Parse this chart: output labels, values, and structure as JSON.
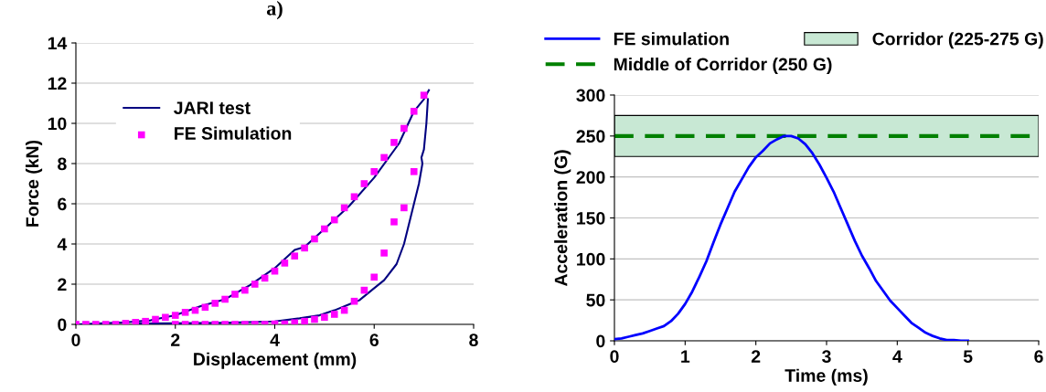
{
  "chart_data": [
    {
      "type": "line",
      "title": "a)",
      "xlabel": "Displacement (mm)",
      "ylabel": "Force (kN)",
      "xlim": [
        0,
        8
      ],
      "xticks": [
        0,
        2,
        4,
        6,
        8
      ],
      "ylim": [
        0,
        14
      ],
      "yticks": [
        0,
        2,
        4,
        6,
        8,
        10,
        12,
        14
      ],
      "grid": "y",
      "legend": "top left",
      "series": [
        {
          "name": "JARI test",
          "color": "#000080",
          "marker": "none",
          "line_style": "solid",
          "x": [
            0,
            1,
            1.5,
            2,
            2.5,
            3,
            3.5,
            4,
            4.4,
            4.6,
            5,
            5.5,
            6,
            6.5,
            6.8,
            7.0,
            7.1
          ],
          "values": [
            0,
            0.1,
            0.2,
            0.45,
            0.9,
            1.25,
            1.95,
            2.8,
            3.7,
            3.85,
            4.75,
            5.9,
            7.3,
            9.0,
            10.6,
            11.2,
            11.65
          ]
        },
        {
          "color": "#000080",
          "marker": "none",
          "line_style": "solid",
          "x": [
            7.08,
            7.05,
            7.0,
            6.95,
            6.97,
            6.9,
            6.8,
            6.6,
            6.45,
            6.2,
            6.0,
            5.7,
            5.5,
            5.2,
            4.9,
            4.5,
            4.0,
            3,
            2,
            1.2
          ],
          "values": [
            11.2,
            10.0,
            8.7,
            8.3,
            8.0,
            7.0,
            6.0,
            4.0,
            3.0,
            2.2,
            1.8,
            1.2,
            1.0,
            0.7,
            0.45,
            0.3,
            0.15,
            0.08,
            0.05,
            0.04
          ]
        },
        {
          "name": "FE Simulation",
          "type": "scatter",
          "color": "#ff00ff",
          "marker": "square",
          "x": [
            0,
            0.2,
            0.4,
            0.6,
            0.8,
            1.0,
            1.2,
            1.4,
            1.6,
            1.8,
            2.0,
            2.2,
            2.4,
            2.6,
            2.8,
            3.0,
            3.2,
            3.4,
            3.6,
            3.8,
            4.0,
            4.2,
            4.4,
            4.6,
            4.8,
            5.0,
            5.2,
            5.4,
            5.6,
            5.8,
            6.0,
            6.2,
            6.4,
            6.6,
            6.8,
            7.0,
            6.8,
            6.6,
            6.4,
            6.2,
            6.0,
            5.8,
            5.6,
            5.4,
            5.2,
            5.0,
            4.8,
            4.6,
            4.4,
            4.2,
            4.0,
            3.8,
            3.6,
            3.4,
            3.2,
            3.0,
            2.8,
            2.6,
            2.4,
            2.2,
            2.0
          ],
          "values": [
            0,
            0,
            0,
            0,
            0,
            0.05,
            0.1,
            0.15,
            0.25,
            0.35,
            0.45,
            0.6,
            0.7,
            0.85,
            1.05,
            1.25,
            1.5,
            1.7,
            2.0,
            2.3,
            2.65,
            3.05,
            3.4,
            3.8,
            4.25,
            4.75,
            5.2,
            5.8,
            6.35,
            7.0,
            7.6,
            8.3,
            9.05,
            9.75,
            10.6,
            11.4,
            7.6,
            5.8,
            5.1,
            3.55,
            2.35,
            1.7,
            1.15,
            0.7,
            0.5,
            0.35,
            0.25,
            0.15,
            0.08,
            0.02,
            0.02,
            0,
            0,
            0,
            0,
            0,
            0,
            0,
            0,
            0,
            0
          ]
        }
      ]
    },
    {
      "type": "line",
      "xlabel": "Time (ms)",
      "ylabel": "Acceleration (G)",
      "xlim": [
        0,
        6
      ],
      "xticks": [
        0,
        1,
        2,
        3,
        4,
        5,
        6
      ],
      "ylim": [
        0,
        300
      ],
      "yticks": [
        0,
        50,
        100,
        150,
        200,
        250,
        300
      ],
      "grid": "y",
      "legend": "top",
      "bands": [
        {
          "axis": "y",
          "from": 225,
          "to": 275,
          "label": "Corridor (225-275 G)",
          "color": "#c8e8d4"
        }
      ],
      "ref_lines": [
        {
          "axis": "y",
          "value": 250,
          "label": "Middle of Corridor (250 G)",
          "color": "#008000",
          "line_style": "dashed"
        }
      ],
      "series": [
        {
          "name": "FE simulation",
          "color": "#0000ff",
          "marker": "none",
          "line_style": "solid",
          "x": [
            0,
            0.1,
            0.2,
            0.3,
            0.4,
            0.5,
            0.6,
            0.7,
            0.8,
            0.9,
            1.0,
            1.1,
            1.2,
            1.3,
            1.4,
            1.5,
            1.6,
            1.7,
            1.8,
            1.9,
            2.0,
            2.1,
            2.2,
            2.3,
            2.4,
            2.5,
            2.6,
            2.7,
            2.8,
            2.9,
            3.0,
            3.1,
            3.2,
            3.3,
            3.4,
            3.5,
            3.6,
            3.7,
            3.8,
            3.9,
            4.0,
            4.1,
            4.2,
            4.3,
            4.4,
            4.5,
            4.6,
            4.7,
            4.8,
            4.9,
            5.0
          ],
          "values": [
            2,
            3,
            5,
            7,
            9,
            12,
            15,
            18,
            24,
            33,
            45,
            60,
            78,
            97,
            120,
            142,
            162,
            182,
            197,
            212,
            224,
            232,
            241,
            246,
            250,
            250,
            247,
            240,
            229,
            215,
            199,
            182,
            162,
            142,
            122,
            104,
            89,
            73,
            61,
            49,
            40,
            31,
            22,
            16,
            10,
            6,
            3,
            1,
            1,
            0,
            0
          ]
        }
      ]
    }
  ]
}
